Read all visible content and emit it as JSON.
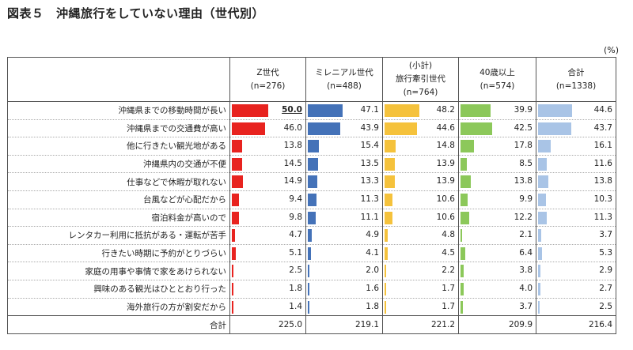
{
  "page": {
    "title": "図表５　沖縄旅行をしていない理由（世代別）",
    "unit": "(%)"
  },
  "chart_data": {
    "type": "table",
    "title": "図表５　沖縄旅行をしていない理由（世代別）",
    "unit": "(%)",
    "columns": [
      {
        "line1": "Z世代",
        "line2": "(n=276)",
        "line3": "",
        "color": "#e8231f"
      },
      {
        "line1": "ミレニアル世代",
        "line2": "(n=488)",
        "line3": "",
        "color": "#4472b8"
      },
      {
        "line1": "(小計)",
        "line2": "旅行牽引世代",
        "line3": "(n=764)",
        "color": "#f5c23c"
      },
      {
        "line1": "40歳以上",
        "line2": "(n=574)",
        "line3": "",
        "color": "#8cc85a"
      },
      {
        "line1": "合計",
        "line2": "(n=1338)",
        "line3": "",
        "color": "#a9c4e6"
      }
    ],
    "categories": [
      "沖縄県までの移動時間が長い",
      "沖縄県までの交通費が高い",
      "他に行きたい観光地がある",
      "沖縄県内の交通が不便",
      "仕事などで休暇が取れない",
      "台風などが心配だから",
      "宿泊料金が高いので",
      "レンタカー利用に抵抗がある・運転が苦手",
      "行きたい時期に予約がとりづらい",
      "家庭の用事や事情で家をあけられない",
      "興味のある観光はひととおり行った",
      "海外旅行の方が割安だから"
    ],
    "series": [
      {
        "name": "Z世代",
        "values": [
          "50.0",
          "46.0",
          "13.8",
          "14.5",
          "14.9",
          "9.4",
          "9.8",
          "4.7",
          "5.1",
          "2.5",
          "1.8",
          "1.4"
        ],
        "total": "225.0"
      },
      {
        "name": "ミレニアル世代",
        "values": [
          "47.1",
          "43.9",
          "15.4",
          "13.5",
          "13.3",
          "11.3",
          "11.1",
          "4.9",
          "4.1",
          "2.0",
          "1.6",
          "1.8"
        ],
        "total": "219.1"
      },
      {
        "name": "旅行牽引世代",
        "values": [
          "48.2",
          "44.6",
          "14.8",
          "13.9",
          "13.9",
          "10.6",
          "10.6",
          "4.8",
          "4.5",
          "2.2",
          "1.7",
          "1.7"
        ],
        "total": "221.2"
      },
      {
        "name": "40歳以上",
        "values": [
          "39.9",
          "42.5",
          "17.8",
          "8.5",
          "13.8",
          "9.9",
          "12.2",
          "2.1",
          "6.4",
          "3.8",
          "4.0",
          "3.7"
        ],
        "total": "209.9"
      },
      {
        "name": "合計",
        "values": [
          "44.6",
          "43.7",
          "16.1",
          "11.6",
          "13.8",
          "10.3",
          "11.3",
          "3.7",
          "5.3",
          "2.9",
          "2.7",
          "2.5"
        ],
        "total": "216.4"
      }
    ],
    "highlight": {
      "series": 0,
      "row": 0
    },
    "total_label": "合計",
    "xlim": [
      0,
      100
    ]
  }
}
